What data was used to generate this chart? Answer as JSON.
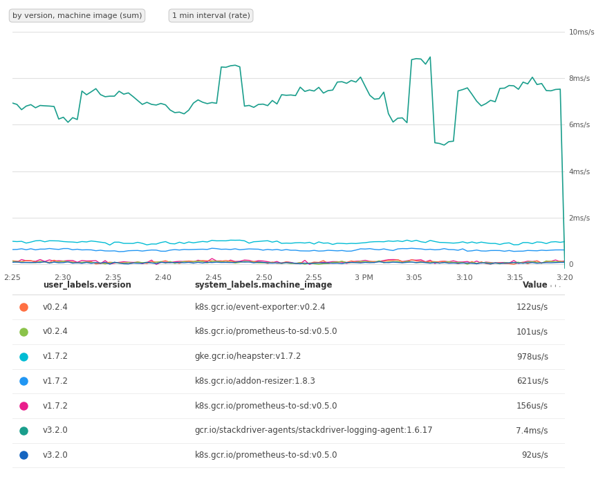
{
  "bg_color": "#ffffff",
  "button1_text": "by version, machine image (sum)",
  "button2_text": "1 min interval (rate)",
  "x_ticks": [
    "2:25",
    "2:30",
    "2:35",
    "2:40",
    "2:45",
    "2:50",
    "2:55",
    "3 PM",
    "3:05",
    "3:10",
    "3:15",
    "3:20"
  ],
  "y_ticks_labels": [
    "0",
    "2ms/s",
    "4ms/s",
    "6ms/s",
    "8ms/s",
    "10ms/s"
  ],
  "y_values": [
    0,
    2,
    4,
    6,
    8,
    10
  ],
  "grid_color": "#e0e0e0",
  "series": [
    {
      "label": "v3.2.0 / gcr.io/stackdriver",
      "color": "#1a9e8c",
      "base": 7.0
    },
    {
      "label": "v1.7.2 / heapster",
      "color": "#00bcd4",
      "base": 0.95,
      "amplitude": 0.05,
      "noise": 0.03,
      "phase": 0.3
    },
    {
      "label": "v1.7.2 / addon-resizer",
      "color": "#2196f3",
      "base": 0.62,
      "amplitude": 0.04,
      "noise": 0.02,
      "phase": 0.5
    },
    {
      "label": "v1.7.2 / prometheus",
      "color": "#e91e8c",
      "base": 0.12,
      "amplitude": 0.05,
      "noise": 0.04,
      "phase": 0.7
    },
    {
      "label": "v0.2.4 / event-exporter",
      "color": "#ff7043",
      "base": 0.1,
      "amplitude": 0.04,
      "noise": 0.03,
      "phase": 1.0
    },
    {
      "label": "v0.2.4 / prometheus",
      "color": "#8bc34a",
      "base": 0.08,
      "amplitude": 0.03,
      "noise": 0.025,
      "phase": 1.2
    },
    {
      "label": "v3.2.0 / prometheus",
      "color": "#1565c0",
      "base": 0.07,
      "amplitude": 0.02,
      "noise": 0.015,
      "phase": 0.9
    }
  ],
  "table_headers": [
    "user_labels.version",
    "system_labels.machine_image",
    "Value"
  ],
  "table_rows": [
    {
      "color": "#ff7043",
      "version": "v0.2.4",
      "machine_image": "k8s.gcr.io/event-exporter:v0.2.4",
      "value": "122us/s"
    },
    {
      "color": "#8bc34a",
      "version": "v0.2.4",
      "machine_image": "k8s.gcr.io/prometheus-to-sd:v0.5.0",
      "value": "101us/s"
    },
    {
      "color": "#00bcd4",
      "version": "v1.7.2",
      "machine_image": "gke.gcr.io/heapster:v1.7.2",
      "value": "978us/s"
    },
    {
      "color": "#2196f3",
      "version": "v1.7.2",
      "machine_image": "k8s.gcr.io/addon-resizer:1.8.3",
      "value": "621us/s"
    },
    {
      "color": "#e91e8c",
      "version": "v1.7.2",
      "machine_image": "k8s.gcr.io/prometheus-to-sd:v0.5.0",
      "value": "156us/s"
    },
    {
      "color": "#1a9e8c",
      "version": "v3.2.0",
      "machine_image": "gcr.io/stackdriver-agents/stackdriver-logging-agent:1.6.17",
      "value": "7.4ms/s"
    },
    {
      "color": "#1565c0",
      "version": "v3.2.0",
      "machine_image": "k8s.gcr.io/prometheus-to-sd:v0.5.0",
      "value": "92us/s"
    }
  ]
}
